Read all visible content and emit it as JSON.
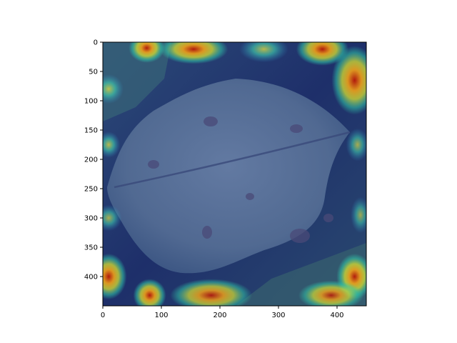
{
  "chart_data": {
    "type": "heatmap",
    "title": "",
    "xlabel": "",
    "ylabel": "",
    "xlim": [
      0,
      450
    ],
    "ylim": [
      450,
      0
    ],
    "y_axis_inverted": true,
    "grid": false,
    "x_ticks": [
      0,
      100,
      200,
      300,
      400
    ],
    "y_ticks": [
      0,
      50,
      100,
      150,
      200,
      250,
      300,
      350,
      400
    ],
    "background_image": "photo of a green leaf with dark blotches",
    "overlay_colormap": "jet",
    "hotspots": [
      {
        "x": 75,
        "y": 10,
        "rx": 22,
        "ry": 18,
        "level": 1.0
      },
      {
        "x": 155,
        "y": 12,
        "rx": 42,
        "ry": 18,
        "level": 1.0
      },
      {
        "x": 275,
        "y": 12,
        "rx": 30,
        "ry": 16,
        "level": 0.75
      },
      {
        "x": 375,
        "y": 12,
        "rx": 32,
        "ry": 20,
        "level": 1.0
      },
      {
        "x": 430,
        "y": 65,
        "rx": 28,
        "ry": 42,
        "level": 1.0
      },
      {
        "x": 10,
        "y": 80,
        "rx": 18,
        "ry": 18,
        "level": 0.75
      },
      {
        "x": 10,
        "y": 175,
        "rx": 14,
        "ry": 16,
        "level": 0.75
      },
      {
        "x": 435,
        "y": 175,
        "rx": 14,
        "ry": 20,
        "level": 0.55
      },
      {
        "x": 10,
        "y": 300,
        "rx": 16,
        "ry": 16,
        "level": 0.6
      },
      {
        "x": 440,
        "y": 295,
        "rx": 12,
        "ry": 22,
        "level": 0.45
      },
      {
        "x": 10,
        "y": 400,
        "rx": 22,
        "ry": 28,
        "level": 1.0
      },
      {
        "x": 80,
        "y": 432,
        "rx": 20,
        "ry": 20,
        "level": 1.0
      },
      {
        "x": 185,
        "y": 432,
        "rx": 50,
        "ry": 20,
        "level": 0.85
      },
      {
        "x": 430,
        "y": 400,
        "rx": 22,
        "ry": 28,
        "level": 1.0
      },
      {
        "x": 390,
        "y": 432,
        "rx": 40,
        "ry": 18,
        "level": 0.8
      }
    ],
    "colors": {
      "base": "#2a2f7a",
      "leaf_tint": "#5a6ea0",
      "hot": "#c81e0a",
      "warm": "#e0c820",
      "mid": "#38c8a0"
    }
  }
}
